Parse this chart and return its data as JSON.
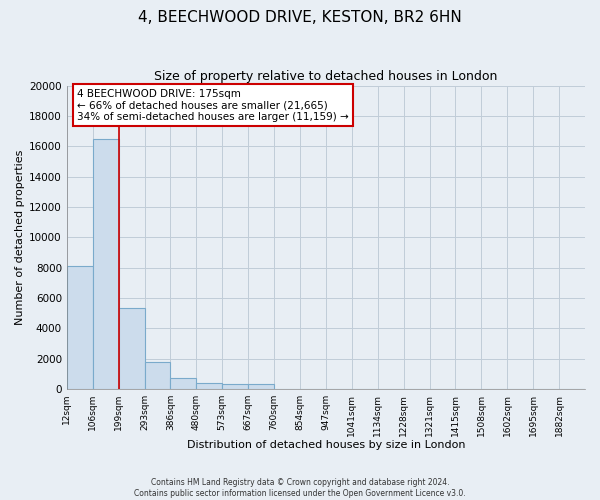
{
  "title": "4, BEECHWOOD DRIVE, KESTON, BR2 6HN",
  "subtitle": "Size of property relative to detached houses in London",
  "xlabel": "Distribution of detached houses by size in London",
  "ylabel": "Number of detached properties",
  "bar_values": [
    8100,
    16500,
    5300,
    1800,
    700,
    380,
    290,
    310,
    0,
    0,
    0,
    0,
    0,
    0,
    0,
    0,
    0,
    0,
    0,
    0
  ],
  "bar_labels": [
    "12sqm",
    "106sqm",
    "199sqm",
    "293sqm",
    "386sqm",
    "480sqm",
    "573sqm",
    "667sqm",
    "760sqm",
    "854sqm",
    "947sqm",
    "1041sqm",
    "1134sqm",
    "1228sqm",
    "1321sqm",
    "1415sqm",
    "1508sqm",
    "1602sqm",
    "1695sqm",
    "1882sqm"
  ],
  "bar_color": "#ccdcec",
  "bar_edge_color": "#7aaacb",
  "ylim": [
    0,
    20000
  ],
  "yticks": [
    0,
    2000,
    4000,
    6000,
    8000,
    10000,
    12000,
    14000,
    16000,
    18000,
    20000
  ],
  "property_line_x": 2.0,
  "property_line_color": "#cc0000",
  "annotation_title": "4 BEECHWOOD DRIVE: 175sqm",
  "annotation_line1": "← 66% of detached houses are smaller (21,665)",
  "annotation_line2": "34% of semi-detached houses are larger (11,159) →",
  "annotation_box_color": "#ffffff",
  "annotation_box_edge": "#cc0000",
  "footer_line1": "Contains HM Land Registry data © Crown copyright and database right 2024.",
  "footer_line2": "Contains public sector information licensed under the Open Government Licence v3.0.",
  "background_color": "#e8eef4",
  "plot_background": "#e8eef4",
  "grid_color": "#c0ccd8"
}
